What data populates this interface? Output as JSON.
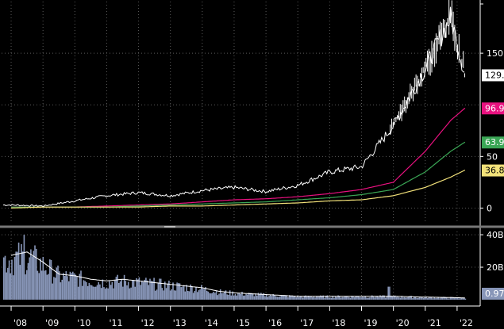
{
  "colors": {
    "background": "#000000",
    "price": "#ffffff",
    "ma_fast": "#e8117f",
    "ma_mid": "#3aa655",
    "ma_slow": "#f3e27a",
    "volume": "#8896b8",
    "grid": "#5a5a5a",
    "divider": "#777777"
  },
  "price_tags": [
    "129.",
    "96.9",
    "63.9",
    "36.8"
  ],
  "chart_data": [
    {
      "type": "line",
      "panel": "price",
      "grid": true,
      "ylim": [
        -15,
        200
      ],
      "y_ticks": [
        {
          "value": 150,
          "label": "150"
        },
        {
          "value": 50,
          "label": "50"
        },
        {
          "value": 0,
          "label": "0"
        }
      ],
      "x_ticks": [
        "'08",
        "'09",
        "'10",
        "'11",
        "'12",
        "'13",
        "'14",
        "'15",
        "'16",
        "'17",
        "'18",
        "'19",
        "'20",
        "'21",
        "'22"
      ],
      "x": [
        2008.0,
        2009.0,
        2010.0,
        2011.0,
        2012.0,
        2013.0,
        2014.0,
        2015.0,
        2016.0,
        2017.0,
        2018.0,
        2019.0,
        2020.0,
        2021.0,
        2021.8,
        2022.25
      ],
      "series": [
        {
          "values": [
            3,
            2,
            7,
            12,
            15,
            12,
            17,
            20,
            16,
            22,
            35,
            40,
            80,
            135,
            185,
            129
          ]
        },
        {
          "values": [
            1,
            1,
            1,
            2,
            3,
            4,
            6,
            8,
            9,
            11,
            14,
            18,
            25,
            55,
            85,
            96.9
          ]
        },
        {
          "values": [
            1,
            1,
            1,
            1,
            2,
            3,
            4,
            5,
            6,
            8,
            10,
            13,
            18,
            35,
            55,
            63.9
          ]
        },
        {
          "values": [
            0,
            1,
            1,
            1,
            1,
            2,
            2,
            3,
            4,
            5,
            7,
            8,
            12,
            20,
            30,
            36.8
          ]
        }
      ]
    },
    {
      "type": "bar",
      "panel": "volume",
      "grid": true,
      "ylim": [
        0,
        42
      ],
      "y_ticks": [
        {
          "value": 40,
          "label": "40B"
        },
        {
          "value": 20,
          "label": "20B"
        }
      ],
      "last_value_label": "0.97",
      "x": [
        2008.0,
        2008.5,
        2009.0,
        2009.5,
        2010.0,
        2010.5,
        2011.0,
        2011.5,
        2012.0,
        2012.5,
        2013.0,
        2013.5,
        2014.0,
        2014.5,
        2015.0,
        2016.0,
        2017.0,
        2018.0,
        2019.0,
        2020.0,
        2021.0,
        2022.0,
        2022.25
      ],
      "values": [
        26,
        28,
        22,
        15,
        14,
        12,
        11,
        12,
        11,
        10,
        9,
        8,
        7,
        5,
        4,
        3,
        2,
        2,
        2,
        2,
        1.5,
        1.2,
        0.97
      ]
    }
  ]
}
